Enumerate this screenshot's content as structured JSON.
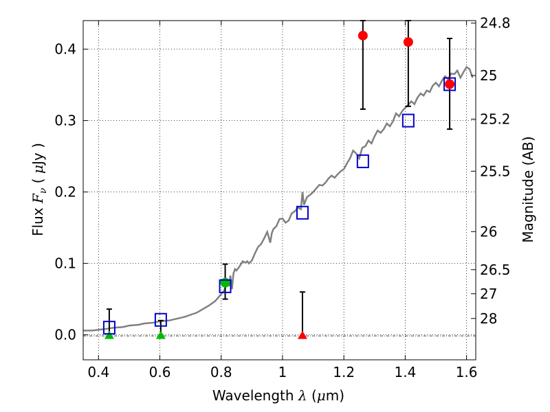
{
  "chart_data": {
    "type": "scatter",
    "xlabel": {
      "prefix": "Wavelength  ",
      "math": "λ",
      "suffix": " (",
      "mu": "μ",
      "unit": "m)"
    },
    "ylabel": {
      "prefix": "Flux  ",
      "math": "F",
      "sub": "ν",
      "suffix": "  ( ",
      "mu": "μ",
      "unit": "Jy )"
    },
    "y2label": "Magnitude (AB)",
    "xlim": [
      0.35,
      1.63
    ],
    "ylim": [
      -0.035,
      0.44
    ],
    "x_ticks": [
      0.4,
      0.6,
      0.8,
      1.0,
      1.2,
      1.4,
      1.6
    ],
    "x_tick_labels": [
      "0.4",
      "0.6",
      "0.8",
      "1",
      "1.2",
      "1.4",
      "1.6"
    ],
    "y_ticks": [
      0.0,
      0.1,
      0.2,
      0.3,
      0.4
    ],
    "y_tick_labels": [
      "0.0",
      "0.1",
      "0.2",
      "0.3",
      "0.4"
    ],
    "mag_ticks": [
      24.8,
      25,
      25.2,
      25.5,
      26,
      26.5,
      27,
      28
    ],
    "mag_tick_labels": [
      "24.8",
      "25",
      "25.2",
      "25.5",
      "26",
      "26.5",
      "27",
      "28"
    ],
    "grid": true,
    "colors": {
      "template": "#808080",
      "model_box": "#0000cc",
      "detection_green": "#00bb00",
      "detection_red": "#ff0000",
      "errorbar": "#000000"
    },
    "template_spectrum": {
      "x": [
        0.35,
        0.38,
        0.4,
        0.42,
        0.45,
        0.48,
        0.5,
        0.53,
        0.55,
        0.58,
        0.6,
        0.63,
        0.65,
        0.68,
        0.7,
        0.72,
        0.74,
        0.76,
        0.78,
        0.79,
        0.8,
        0.81,
        0.82,
        0.825,
        0.83,
        0.835,
        0.84,
        0.845,
        0.85,
        0.86,
        0.87,
        0.88,
        0.885,
        0.89,
        0.9,
        0.91,
        0.92,
        0.93,
        0.94,
        0.95,
        0.96,
        0.965,
        0.97,
        0.98,
        0.99,
        1.0,
        1.01,
        1.02,
        1.03,
        1.04,
        1.05,
        1.06,
        1.065,
        1.07,
        1.08,
        1.09,
        1.1,
        1.11,
        1.12,
        1.13,
        1.14,
        1.15,
        1.16,
        1.17,
        1.18,
        1.19,
        1.2,
        1.21,
        1.22,
        1.23,
        1.24,
        1.25,
        1.26,
        1.27,
        1.28,
        1.29,
        1.3,
        1.31,
        1.32,
        1.33,
        1.34,
        1.35,
        1.36,
        1.37,
        1.38,
        1.39,
        1.4,
        1.41,
        1.42,
        1.43,
        1.44,
        1.45,
        1.46,
        1.47,
        1.48,
        1.49,
        1.5,
        1.51,
        1.52,
        1.53,
        1.54,
        1.55,
        1.56,
        1.57,
        1.58,
        1.59,
        1.6,
        1.61,
        1.62
      ],
      "y": [
        0.006,
        0.006,
        0.007,
        0.008,
        0.01,
        0.011,
        0.013,
        0.014,
        0.016,
        0.017,
        0.019,
        0.02,
        0.022,
        0.025,
        0.028,
        0.031,
        0.036,
        0.041,
        0.047,
        0.052,
        0.057,
        0.062,
        0.075,
        0.068,
        0.083,
        0.064,
        0.086,
        0.092,
        0.09,
        0.096,
        0.103,
        0.101,
        0.103,
        0.1,
        0.104,
        0.114,
        0.123,
        0.127,
        0.135,
        0.144,
        0.129,
        0.142,
        0.148,
        0.152,
        0.162,
        0.163,
        0.157,
        0.16,
        0.17,
        0.173,
        0.178,
        0.176,
        0.2,
        0.182,
        0.193,
        0.196,
        0.2,
        0.205,
        0.21,
        0.209,
        0.213,
        0.219,
        0.223,
        0.22,
        0.225,
        0.229,
        0.232,
        0.24,
        0.247,
        0.258,
        0.254,
        0.247,
        0.262,
        0.264,
        0.272,
        0.268,
        0.278,
        0.286,
        0.283,
        0.288,
        0.296,
        0.292,
        0.299,
        0.31,
        0.306,
        0.313,
        0.318,
        0.322,
        0.327,
        0.323,
        0.332,
        0.338,
        0.335,
        0.342,
        0.34,
        0.349,
        0.353,
        0.348,
        0.356,
        0.362,
        0.358,
        0.366,
        0.365,
        0.37,
        0.36,
        0.368,
        0.375,
        0.372,
        0.36
      ]
    },
    "model_boxes": {
      "x": [
        0.435,
        0.603,
        0.813,
        1.065,
        1.262,
        1.41,
        1.545
      ],
      "y": [
        0.01,
        0.021,
        0.068,
        0.171,
        0.243,
        0.3,
        0.351
      ]
    },
    "error_bars": [
      {
        "x": 0.435,
        "low": -0.003,
        "high": 0.036
      },
      {
        "x": 0.603,
        "low": -0.003,
        "high": 0.02
      },
      {
        "x": 0.813,
        "low": 0.05,
        "high": 0.099
      },
      {
        "x": 1.065,
        "low": -0.002,
        "high": 0.06
      },
      {
        "x": 1.262,
        "low": 0.316,
        "high": 0.44
      },
      {
        "x": 1.41,
        "low": 0.32,
        "high": 0.44
      },
      {
        "x": 1.545,
        "low": 0.288,
        "high": 0.415
      }
    ],
    "detections_green_circle": [
      {
        "x": 0.813,
        "y": 0.073
      }
    ],
    "detections_red_circle": [
      {
        "x": 1.262,
        "y": 0.419
      },
      {
        "x": 1.41,
        "y": 0.41
      },
      {
        "x": 1.545,
        "y": 0.351
      }
    ],
    "upper_limits_green_triangle": [
      {
        "x": 0.435,
        "y": 0.0
      },
      {
        "x": 0.603,
        "y": 0.0
      }
    ],
    "upper_limits_red_triangle": [
      {
        "x": 1.065,
        "y": 0.0
      }
    ]
  }
}
